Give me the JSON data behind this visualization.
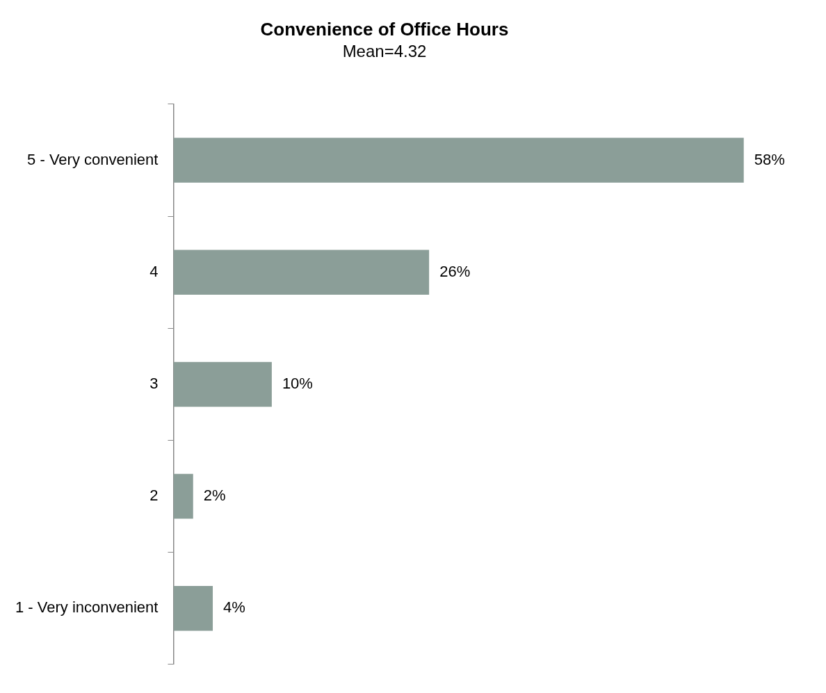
{
  "chart_data": {
    "type": "bar",
    "orientation": "horizontal",
    "title": "Convenience of Office Hours",
    "subtitle": "Mean=4.32",
    "categories": [
      "5 - Very convenient",
      "4",
      "3",
      "2",
      "1 - Very inconvenient"
    ],
    "values": [
      58,
      26,
      10,
      2,
      4
    ],
    "value_labels": [
      "58%",
      "26%",
      "10%",
      "2%",
      "4%"
    ],
    "color": "#8b9e98",
    "grid": false,
    "legend": false,
    "tick_labels": "y"
  }
}
